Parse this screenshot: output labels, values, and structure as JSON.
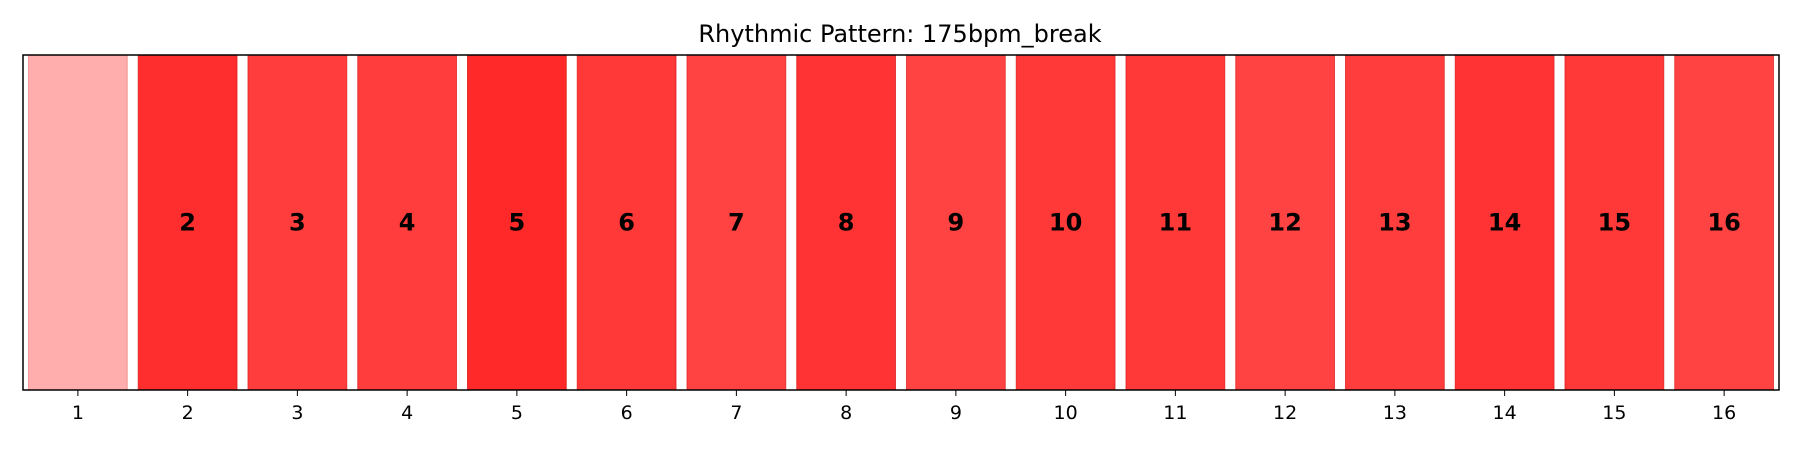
{
  "chart_data": {
    "type": "bar",
    "title": "Rhythmic Pattern: 175bpm_break",
    "xlabel": "",
    "ylabel": "",
    "categories": [
      "1",
      "2",
      "3",
      "4",
      "5",
      "6",
      "7",
      "8",
      "9",
      "10",
      "11",
      "12",
      "13",
      "14",
      "15",
      "16"
    ],
    "values": [
      1.0,
      1.0,
      1.0,
      1.0,
      1.0,
      1.0,
      1.0,
      1.0,
      1.0,
      1.0,
      1.0,
      1.0,
      1.0,
      1.0,
      1.0,
      1.0
    ],
    "bar_labels": [
      "",
      "2",
      "3",
      "4",
      "5",
      "6",
      "7",
      "8",
      "9",
      "10",
      "11",
      "12",
      "13",
      "14",
      "15",
      "16"
    ],
    "intensity": [
      0.32,
      0.82,
      0.76,
      0.76,
      0.84,
      0.78,
      0.74,
      0.8,
      0.74,
      0.78,
      0.78,
      0.74,
      0.76,
      0.8,
      0.78,
      0.74
    ],
    "ylim": [
      0,
      1
    ],
    "grid": false,
    "legend": "none",
    "colors": {
      "bar": "#ff0000",
      "edge": "#e02020"
    }
  }
}
